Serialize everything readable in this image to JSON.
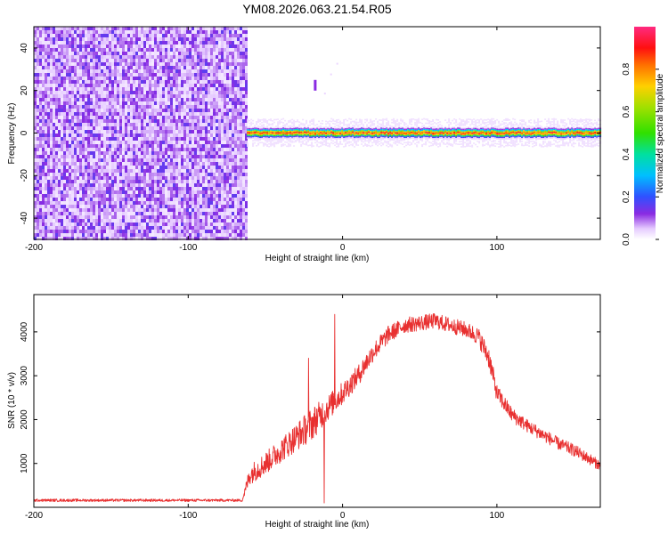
{
  "title": "YM08.2026.063.21.54.R05",
  "chart_data": [
    {
      "type": "heatmap",
      "name": "spectrogram",
      "xlabel": "Height of straight line (km)",
      "ylabel": "Frequency (Hz)",
      "xlim": [
        -200,
        167
      ],
      "ylim": [
        -50,
        50
      ],
      "xticks": [
        -200,
        -100,
        0,
        100
      ],
      "xtick_labels": [
        "-200",
        "-100",
        "0",
        "100"
      ],
      "yticks": [
        -40,
        -20,
        0,
        20,
        40
      ],
      "ytick_labels": [
        "-40",
        "-20",
        "0",
        "20",
        "40"
      ],
      "noise_region_x": [
        -200,
        -62
      ],
      "noise_level": [
        0.05,
        0.3
      ],
      "tone": {
        "x_start": -62,
        "x_end": 167,
        "freq_hz": 0,
        "peak_amplitude": 0.9,
        "band_half_width_hz": 4
      },
      "spur": {
        "x": -18,
        "freq_range_hz": [
          20,
          25
        ]
      },
      "colorbar": {
        "label": "Normalized spectral amplitude",
        "range": [
          0,
          1
        ],
        "ticks": [
          0.0,
          0.2,
          0.4,
          0.6,
          0.8
        ],
        "tick_labels": [
          "0.0",
          "0.2",
          "0.4",
          "0.6",
          "0.8"
        ]
      }
    },
    {
      "type": "line",
      "name": "snr",
      "xlabel": "Height of straight line (km)",
      "ylabel": "SNR (10 * v/v)",
      "xlim": [
        -200,
        167
      ],
      "ylim": [
        0,
        4850
      ],
      "xticks": [
        -200,
        -100,
        0,
        100
      ],
      "xtick_labels": [
        "-200",
        "-100",
        "0",
        "100"
      ],
      "yticks": [
        1000,
        2000,
        3000,
        4000
      ],
      "ytick_labels": [
        "1000",
        "2000",
        "3000",
        "4000"
      ],
      "series": [
        {
          "name": "SNR",
          "color": "#e83030",
          "x": [
            -200,
            -150,
            -100,
            -65,
            -60,
            -50,
            -40,
            -30,
            -20,
            -10,
            0,
            10,
            20,
            30,
            40,
            50,
            60,
            70,
            80,
            88,
            95,
            100,
            110,
            120,
            130,
            140,
            150,
            160,
            167
          ],
          "y": [
            160,
            160,
            160,
            160,
            750,
            1000,
            1300,
            1600,
            1900,
            2250,
            2600,
            3000,
            3550,
            3950,
            4150,
            4200,
            4250,
            4150,
            4050,
            3900,
            3400,
            2600,
            2100,
            1850,
            1650,
            1450,
            1300,
            1100,
            950
          ],
          "noise_amplitude": [
            30,
            30,
            30,
            30,
            230,
            260,
            280,
            320,
            380,
            300,
            260,
            240,
            220,
            200,
            180,
            180,
            180,
            180,
            180,
            200,
            250,
            200,
            170,
            150,
            150,
            140,
            140,
            130,
            120
          ],
          "spikes": [
            {
              "x": -5,
              "y": 4400
            },
            {
              "x": -12,
              "y": 100
            },
            {
              "x": -22,
              "y": 3400
            }
          ]
        }
      ]
    }
  ]
}
